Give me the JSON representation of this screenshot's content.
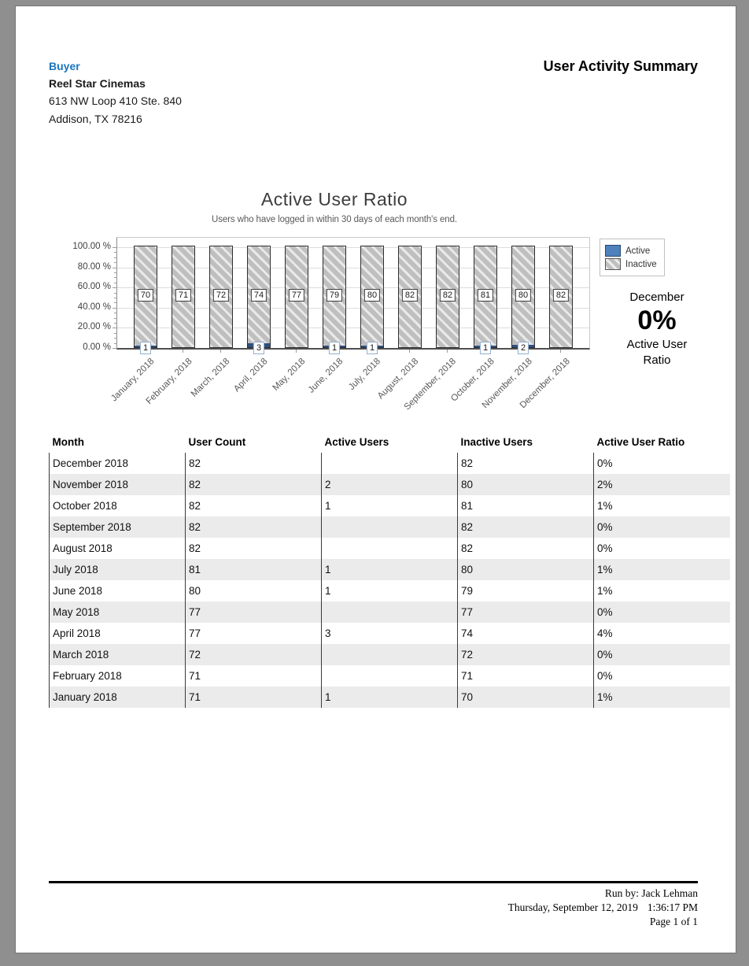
{
  "header": {
    "buyer_label": "Buyer",
    "buyer_name": "Reel Star Cinemas",
    "address_line1": "613 NW Loop 410 Ste. 840",
    "address_line2": "Addison, TX 78216",
    "report_title": "User Activity Summary",
    "accent_color": "#1b75bc"
  },
  "chart_data": {
    "type": "bar",
    "stacked": true,
    "normalized_percent": true,
    "title": "Active User Ratio",
    "subtitle": "Users who have logged in within 30 days of each month's end.",
    "categories": [
      "January, 2018",
      "February, 2018",
      "March, 2018",
      "April, 2018",
      "May, 2018",
      "June, 2018",
      "July, 2018",
      "August, 2018",
      "September, 2018",
      "October, 2018",
      "November, 2018",
      "December, 2018"
    ],
    "series": [
      {
        "name": "Active",
        "color": "#4f81bd",
        "values": [
          1,
          0,
          0,
          3,
          0,
          1,
          1,
          0,
          0,
          1,
          2,
          0
        ]
      },
      {
        "name": "Inactive",
        "color": "#bfbfbf",
        "hatch": true,
        "values": [
          70,
          71,
          72,
          74,
          77,
          79,
          80,
          82,
          82,
          81,
          80,
          82
        ]
      }
    ],
    "totals": [
      71,
      71,
      72,
      77,
      77,
      80,
      81,
      82,
      82,
      82,
      82,
      82
    ],
    "y_ticks": [
      "100.00 %",
      "80.00 %",
      "60.00 %",
      "40.00 %",
      "20.00 %",
      "0.00 %"
    ],
    "ylim": [
      0,
      100
    ],
    "grid": true,
    "legend_position": "right"
  },
  "summary": {
    "month": "December",
    "value": "0%",
    "caption": "Active User Ratio"
  },
  "table": {
    "headers": [
      "Month",
      "User Count",
      "Active Users",
      "Inactive Users",
      "Active User Ratio"
    ],
    "rows": [
      [
        "December 2018",
        "82",
        "",
        "82",
        "0%"
      ],
      [
        "November 2018",
        "82",
        "2",
        "80",
        "2%"
      ],
      [
        "October 2018",
        "82",
        "1",
        "81",
        "1%"
      ],
      [
        "September 2018",
        "82",
        "",
        "82",
        "0%"
      ],
      [
        "August 2018",
        "82",
        "",
        "82",
        "0%"
      ],
      [
        "July 2018",
        "81",
        "1",
        "80",
        "1%"
      ],
      [
        "June 2018",
        "80",
        "1",
        "79",
        "1%"
      ],
      [
        "May 2018",
        "77",
        "",
        "77",
        "0%"
      ],
      [
        "April 2018",
        "77",
        "3",
        "74",
        "4%"
      ],
      [
        "March 2018",
        "72",
        "",
        "72",
        "0%"
      ],
      [
        "February 2018",
        "71",
        "",
        "71",
        "0%"
      ],
      [
        "January 2018",
        "71",
        "1",
        "70",
        "1%"
      ]
    ]
  },
  "footer": {
    "run_by": "Run by: Jack Lehman",
    "date": "Thursday, September 12, 2019",
    "time": "1:36:17 PM",
    "page": "Page 1 of 1"
  }
}
